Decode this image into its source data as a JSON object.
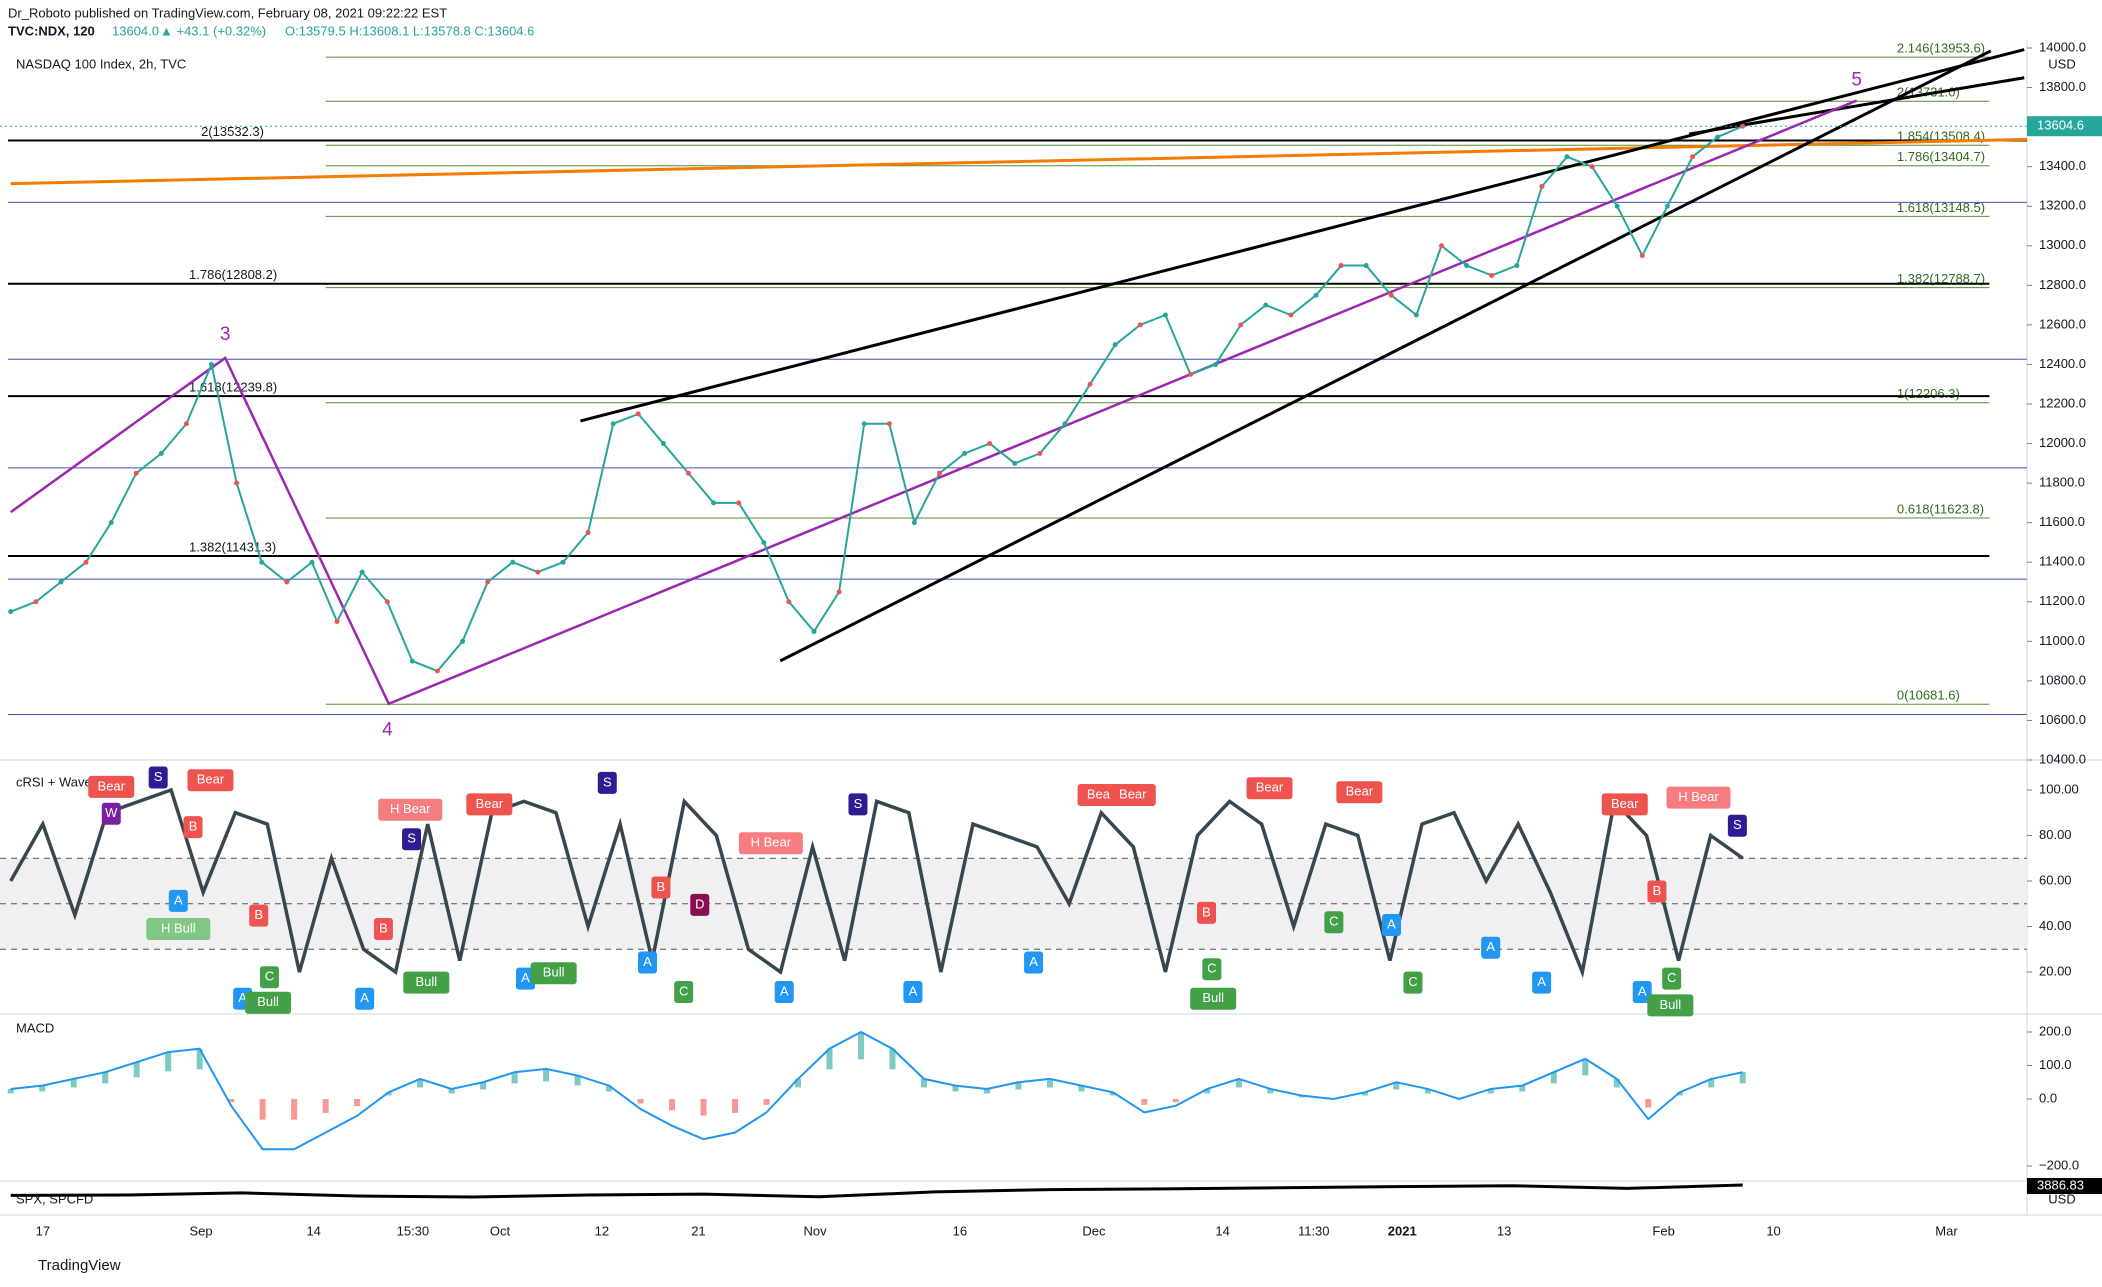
{
  "header": {
    "publisher": "Dr_Roboto published on TradingView.com, February 08, 2021 09:22:22 EST",
    "symbol": "TVC:NDX, 120",
    "last": "13604.0",
    "change": "▲ +43.1 (+0.32%)",
    "ohlc": "O:13579.5 H:13608.1 L:13578.8 C:13604.6"
  },
  "chart_data": {
    "type": "line",
    "title": "NASDAQ 100 Index, 2h, TVC",
    "currency": "USD",
    "color": "#26a69a",
    "values": [
      11150,
      11200,
      11300,
      11400,
      11600,
      11850,
      11950,
      12100,
      12400,
      11800,
      11400,
      11300,
      11400,
      11100,
      11350,
      11200,
      10900,
      10850,
      11000,
      11300,
      11400,
      11350,
      11400,
      11550,
      12100,
      12150,
      12000,
      11850,
      11700,
      11700,
      11500,
      11200,
      11050,
      11250,
      12100,
      12100,
      11600,
      11850,
      11950,
      12000,
      11900,
      11950,
      12100,
      12300,
      12500,
      12600,
      12650,
      12350,
      12400,
      12600,
      12700,
      12650,
      12750,
      12900,
      12900,
      12750,
      12650,
      13000,
      12900,
      12850,
      12900,
      13300,
      13450,
      13400,
      13200,
      12950,
      13200,
      13450,
      13550,
      13604.6
    ],
    "last_value": {
      "value": 13604.6,
      "label": "13604.6"
    },
    "ylim": [
      10400,
      14000
    ],
    "yticks": [
      {
        "value": 10400,
        "label": "10400.0"
      },
      {
        "value": 10600,
        "label": "10600.0"
      },
      {
        "value": 10800,
        "label": "10800.0"
      },
      {
        "value": 11000,
        "label": "11000.0"
      },
      {
        "value": 11200,
        "label": "11200.0"
      },
      {
        "value": 11400,
        "label": "11400.0"
      },
      {
        "value": 11600,
        "label": "11600.0"
      },
      {
        "value": 11800,
        "label": "11800.0"
      },
      {
        "value": 12000,
        "label": "12000.0"
      },
      {
        "value": 12200,
        "label": "12200.0"
      },
      {
        "value": 12400,
        "label": "12400.0"
      },
      {
        "value": 12600,
        "label": "12600.0"
      },
      {
        "value": 12800,
        "label": "12800.0"
      },
      {
        "value": 13000,
        "label": "13000.0"
      },
      {
        "value": 13200,
        "label": "13200.0"
      },
      {
        "value": 13400,
        "label": "13400.0"
      },
      {
        "value": 13600,
        "label": "13600.0"
      },
      {
        "value": 13800,
        "label": "13800.0"
      },
      {
        "value": 14000,
        "label": "14000.0"
      }
    ],
    "fib_right": [
      {
        "value": 13953.6,
        "label": "2.146(13953.6)"
      },
      {
        "value": 13731.0,
        "label": "2(13731.0)"
      },
      {
        "value": 13508.4,
        "label": "1.854(13508.4)"
      },
      {
        "value": 13404.7,
        "label": "1.786(13404.7)"
      },
      {
        "value": 13148.5,
        "label": "1.618(13148.5)"
      },
      {
        "value": 12788.7,
        "label": "1.382(12788.7)"
      },
      {
        "value": 12206.3,
        "label": "1(12206.3)"
      },
      {
        "value": 11623.8,
        "label": "0.618(11623.8)"
      },
      {
        "value": 10681.6,
        "label": "0(10681.6)"
      }
    ],
    "fib_left": [
      {
        "value": 13532.3,
        "label": "2(13532.3)"
      },
      {
        "value": 12808.2,
        "label": "1.786(12808.2)"
      },
      {
        "value": 12239.8,
        "label": "1.618(12239.8)"
      },
      {
        "value": 11431.3,
        "label": "1.382(11431.3)"
      }
    ],
    "waves": [
      "3",
      "4",
      "5"
    ],
    "x_labels": [
      "17",
      "Sep",
      "14",
      "15:30",
      "Oct",
      "12",
      "21",
      "Nov",
      "16",
      "Dec",
      "14",
      "11:30",
      "2021",
      "13",
      "Feb",
      "10",
      "Mar"
    ],
    "crsi": {
      "title": "cRSI + Wave",
      "color": "#37474f",
      "ylim": [
        0,
        110
      ],
      "yticks": [
        {
          "value": 100,
          "label": "100.00"
        },
        {
          "value": 80,
          "label": "80.00"
        },
        {
          "value": 60,
          "label": "60.00"
        },
        {
          "value": 40,
          "label": "40.00"
        },
        {
          "value": 20,
          "label": "20.00"
        }
      ],
      "values": [
        60,
        85,
        45,
        90,
        95,
        100,
        55,
        90,
        85,
        20,
        70,
        30,
        20,
        85,
        25,
        90,
        95,
        90,
        40,
        85,
        25,
        95,
        80,
        30,
        20,
        75,
        25,
        95,
        90,
        20,
        85,
        80,
        75,
        50,
        90,
        75,
        20,
        80,
        95,
        85,
        40,
        85,
        80,
        25,
        85,
        90,
        60,
        85,
        55,
        20,
        95,
        80,
        25,
        80,
        70
      ],
      "signals": [
        "Bear",
        "W",
        "S",
        "Bear",
        "B",
        "A",
        "H Bull",
        "B",
        "C",
        "A",
        "Bull",
        "H Bear",
        "Bear",
        "S",
        "B",
        "A",
        "Bull",
        "A",
        "Bull",
        "S",
        "H Bear",
        "B",
        "D",
        "A",
        "C",
        "A",
        "S",
        "A",
        "Bear",
        "Bear",
        "A",
        "B",
        "C",
        "Bull",
        "Bear",
        "Bear",
        "C",
        "A",
        "C",
        "A",
        "A",
        "Bear",
        "H Bear",
        "B",
        "A",
        "C",
        "Bull",
        "S"
      ]
    },
    "macd": {
      "title": "MACD",
      "color": "#2196f3",
      "ylim": [
        -250,
        250
      ],
      "yticks": [
        {
          "value": 200,
          "label": "200.0"
        },
        {
          "value": 100,
          "label": "100.0"
        },
        {
          "value": 0,
          "label": "0.0"
        },
        {
          "value": -200,
          "label": "−200.0"
        }
      ],
      "values": [
        30,
        40,
        60,
        80,
        110,
        140,
        150,
        -20,
        -150,
        -150,
        -100,
        -50,
        20,
        60,
        30,
        50,
        80,
        90,
        70,
        40,
        -30,
        -80,
        -120,
        -100,
        -40,
        60,
        150,
        200,
        150,
        60,
        40,
        30,
        50,
        60,
        40,
        20,
        -40,
        -20,
        30,
        60,
        30,
        10,
        0,
        20,
        50,
        30,
        0,
        30,
        40,
        80,
        120,
        60,
        -60,
        20,
        60,
        80
      ]
    },
    "spx": {
      "title": "SPX, SPCFD",
      "values": [
        3380,
        3400,
        3500,
        3350,
        3300,
        3400,
        3440,
        3310,
        3550,
        3660,
        3700,
        3750,
        3810,
        3850,
        3720,
        3886.83
      ],
      "last_label": "3886.83",
      "currency": "USD"
    }
  },
  "footer": {
    "brand": "TradingView"
  }
}
